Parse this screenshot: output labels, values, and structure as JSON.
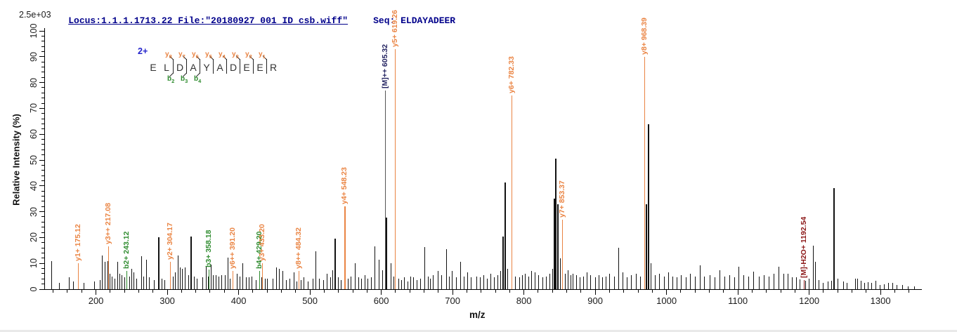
{
  "header": {
    "locus_text": "Locus:1.1.1.1713.22 File:\"20180927_001_ID_csb.wiff\"",
    "seq_text": "Seq: ELDAYADEER"
  },
  "scale_label": "2.5e+03",
  "peptide": {
    "charge_label": "2+",
    "residues": [
      "E",
      "L",
      "D",
      "A",
      "Y",
      "A",
      "D",
      "E",
      "E",
      "R"
    ],
    "boundaries": [
      {},
      {
        "y": "y8",
        "b": "b2"
      },
      {
        "y": "y7",
        "b": "b3"
      },
      {
        "y": "y6",
        "b": "b4"
      },
      {
        "y": "y5"
      },
      {
        "y": "y4"
      },
      {
        "y": "y3"
      },
      {
        "y": "y2"
      },
      {
        "y": "y1"
      }
    ]
  },
  "axes": {
    "x_label": "m/z",
    "y_label": "Relative  Intensity (%)",
    "x_ticks": [
      200,
      300,
      400,
      500,
      600,
      700,
      800,
      900,
      1000,
      1100,
      1200,
      1300
    ],
    "x_minor_step": 20,
    "y_ticks": [
      0,
      10,
      20,
      30,
      40,
      50,
      60,
      70,
      80,
      90,
      100
    ],
    "y_minor_step": 2,
    "x_range": [
      127.5,
      1358
    ],
    "y_range": [
      0,
      100
    ]
  },
  "chart_data": {
    "type": "ms2-stick-spectrum",
    "xlabel": "m/z",
    "ylabel": "Relative  Intensity (%)",
    "x_range": [
      127.5,
      1358
    ],
    "ylim": [
      0,
      100
    ],
    "base_peak_absolute_intensity": "2.5e+03",
    "precursor": {
      "sequence": "ELDAYADEER",
      "charge": "2+",
      "mz_label": "[M]++ 605.32"
    },
    "colors": {
      "y_ion": "#ea8443",
      "b_ion": "#2e8b2e",
      "precursor_line": "#555555",
      "precursor_label": "#1f1f5e",
      "neutral_loss": "#8b1616",
      "default_peak": "#111111"
    },
    "annotated_peaks": [
      {
        "ion": "y1+",
        "mz": 175.12,
        "intensity_pct": 10,
        "label": "y1+ 175.12",
        "series": "y_ion"
      },
      {
        "ion": "y3++",
        "mz": 217.08,
        "intensity_pct": 16.5,
        "label": "y3++ 217.08",
        "series": "y_ion"
      },
      {
        "ion": "b2+",
        "mz": 243.12,
        "intensity_pct": 7,
        "label": "b2+ 243.12",
        "series": "b_ion"
      },
      {
        "ion": "y2+",
        "mz": 304.17,
        "intensity_pct": 10.5,
        "label": "y2+ 304.17",
        "series": "y_ion"
      },
      {
        "ion": "b3+",
        "mz": 358.18,
        "intensity_pct": 7.5,
        "label": "b3+ 358.18",
        "series": "b_ion"
      },
      {
        "ion": "y6++",
        "mz": 391.2,
        "intensity_pct": 7,
        "label": "y6++ 391.20",
        "series": "y_ion"
      },
      {
        "ion": "b4+",
        "mz": 429.2,
        "intensity_pct": 7,
        "label": "b4+ 429.20",
        "series": "b_ion"
      },
      {
        "ion": "y3+",
        "mz": 433.2,
        "intensity_pct": 10,
        "label": "y3+ 433.20",
        "series": "y_ion"
      },
      {
        "ion": "y8++",
        "mz": 484.32,
        "intensity_pct": 7,
        "label": "y8++ 484.32",
        "series": "y_ion"
      },
      {
        "ion": "y4+",
        "mz": 548.23,
        "intensity_pct": 32,
        "label": "y4+ 548.23",
        "series": "y_ion"
      },
      {
        "ion": "[M]++",
        "mz": 605.32,
        "intensity_pct": 77,
        "label": "[M]++ 605.32",
        "series": "precursor"
      },
      {
        "ion": "y5+",
        "mz": 619.26,
        "intensity_pct": 93,
        "label": "y5+ 619.26",
        "series": "y_ion"
      },
      {
        "ion": "y6+",
        "mz": 782.33,
        "intensity_pct": 75,
        "label": "y6+ 782.33",
        "series": "y_ion"
      },
      {
        "ion": "y7+",
        "mz": 853.37,
        "intensity_pct": 27,
        "label": "y7+ 853.37",
        "series": "y_ion"
      },
      {
        "ion": "y8+",
        "mz": 968.39,
        "intensity_pct": 90,
        "label": "y8+ 968.39",
        "series": "y_ion"
      },
      {
        "ion": "[M]-H2O+",
        "mz": 1192.54,
        "intensity_pct": 3.5,
        "label": "[M]-H2O+ 1192.54",
        "series": "neutral_loss"
      }
    ],
    "peaks": [
      [
        137,
        11
      ],
      [
        148,
        2.5
      ],
      [
        162,
        4.5
      ],
      [
        168,
        3
      ],
      [
        183,
        2.5
      ],
      [
        197,
        3
      ],
      [
        205,
        3.5
      ],
      [
        208,
        13
      ],
      [
        212,
        10.5
      ],
      [
        216,
        11
      ],
      [
        219,
        6
      ],
      [
        222,
        5
      ],
      [
        226,
        4
      ],
      [
        230,
        10.5
      ],
      [
        233,
        6
      ],
      [
        236,
        5.5
      ],
      [
        240,
        4.5
      ],
      [
        247,
        5
      ],
      [
        250,
        8
      ],
      [
        253,
        6.5
      ],
      [
        257,
        4
      ],
      [
        263,
        12.8
      ],
      [
        266,
        5
      ],
      [
        270,
        11.4
      ],
      [
        274,
        4.5
      ],
      [
        281,
        3.5
      ],
      [
        288,
        20.2
      ],
      [
        292,
        4
      ],
      [
        296,
        3.5
      ],
      [
        308,
        5
      ],
      [
        311,
        6.5
      ],
      [
        315,
        13
      ],
      [
        318,
        8.5
      ],
      [
        321,
        8
      ],
      [
        325,
        8.5
      ],
      [
        329,
        5.5
      ],
      [
        333,
        20.4
      ],
      [
        337,
        5
      ],
      [
        341,
        4
      ],
      [
        349,
        4.5
      ],
      [
        354,
        8.7
      ],
      [
        357,
        5
      ],
      [
        361,
        9.5
      ],
      [
        364,
        5.5
      ],
      [
        368,
        5.5
      ],
      [
        372,
        5
      ],
      [
        376,
        5.5
      ],
      [
        381,
        5.5
      ],
      [
        385,
        12.2
      ],
      [
        388,
        4
      ],
      [
        397,
        6
      ],
      [
        401,
        5
      ],
      [
        405,
        10
      ],
      [
        410,
        4.5
      ],
      [
        414,
        4.5
      ],
      [
        418,
        5
      ],
      [
        424,
        3.5
      ],
      [
        432,
        4.6
      ],
      [
        437,
        4
      ],
      [
        440,
        4
      ],
      [
        448,
        4
      ],
      [
        453,
        8.5
      ],
      [
        457,
        8
      ],
      [
        461,
        7
      ],
      [
        466,
        3.5
      ],
      [
        471,
        4
      ],
      [
        477,
        6.5
      ],
      [
        481,
        3
      ],
      [
        487,
        3.5
      ],
      [
        491,
        4.6
      ],
      [
        497,
        3
      ],
      [
        504,
        4
      ],
      [
        508,
        14.7
      ],
      [
        513,
        4
      ],
      [
        519,
        3.5
      ],
      [
        524,
        6
      ],
      [
        528,
        4.5
      ],
      [
        531,
        7.3
      ],
      [
        535,
        19.6
      ],
      [
        539,
        4.6
      ],
      [
        543,
        3.5
      ],
      [
        553,
        4
      ],
      [
        557,
        5
      ],
      [
        563,
        10
      ],
      [
        568,
        4.5
      ],
      [
        572,
        4
      ],
      [
        577,
        5.5
      ],
      [
        581,
        4
      ],
      [
        586,
        4.5
      ],
      [
        591,
        16.5
      ],
      [
        596,
        11.4
      ],
      [
        601,
        7.3
      ],
      [
        607,
        27.7
      ],
      [
        613,
        10
      ],
      [
        617,
        5
      ],
      [
        624,
        4
      ],
      [
        628,
        3.5
      ],
      [
        632,
        4.5
      ],
      [
        637,
        3
      ],
      [
        641,
        5
      ],
      [
        645,
        4.5
      ],
      [
        650,
        3.5
      ],
      [
        655,
        4
      ],
      [
        660,
        16.3
      ],
      [
        665,
        5
      ],
      [
        668,
        4
      ],
      [
        672,
        5.5
      ],
      [
        679,
        7
      ],
      [
        684,
        5.4
      ],
      [
        691,
        15.5
      ],
      [
        695,
        5
      ],
      [
        699,
        7
      ],
      [
        705,
        4.5
      ],
      [
        711,
        10.5
      ],
      [
        716,
        5
      ],
      [
        721,
        6.5
      ],
      [
        726,
        4.5
      ],
      [
        733,
        5
      ],
      [
        738,
        4.5
      ],
      [
        743,
        5.5
      ],
      [
        748,
        4
      ],
      [
        753,
        6
      ],
      [
        758,
        4.5
      ],
      [
        763,
        5.5
      ],
      [
        767,
        7
      ],
      [
        771,
        20.5
      ],
      [
        774,
        41.3
      ],
      [
        777,
        8
      ],
      [
        788,
        5
      ],
      [
        793,
        4.6
      ],
      [
        797,
        5.5
      ],
      [
        801,
        6
      ],
      [
        806,
        5
      ],
      [
        810,
        7
      ],
      [
        815,
        6.5
      ],
      [
        820,
        5.4
      ],
      [
        826,
        4.5
      ],
      [
        831,
        5
      ],
      [
        836,
        6
      ],
      [
        840,
        8
      ],
      [
        843,
        35
      ],
      [
        845,
        50.5
      ],
      [
        848,
        33
      ],
      [
        851,
        12
      ],
      [
        858,
        6
      ],
      [
        861,
        7.3
      ],
      [
        865,
        5.5
      ],
      [
        868,
        6
      ],
      [
        873,
        5.4
      ],
      [
        878,
        4.5
      ],
      [
        883,
        5
      ],
      [
        888,
        6.5
      ],
      [
        893,
        5.5
      ],
      [
        900,
        4.5
      ],
      [
        905,
        5.5
      ],
      [
        910,
        4.5
      ],
      [
        915,
        5
      ],
      [
        920,
        6
      ],
      [
        926,
        5
      ],
      [
        932,
        16
      ],
      [
        938,
        6.5
      ],
      [
        944,
        4.5
      ],
      [
        950,
        5.5
      ],
      [
        957,
        6
      ],
      [
        963,
        5
      ],
      [
        972,
        33
      ],
      [
        975,
        63.9
      ],
      [
        978,
        10
      ],
      [
        984,
        5.5
      ],
      [
        990,
        6
      ],
      [
        996,
        5
      ],
      [
        1002,
        6.5
      ],
      [
        1008,
        5
      ],
      [
        1014,
        4.5
      ],
      [
        1020,
        5.5
      ],
      [
        1027,
        4.5
      ],
      [
        1033,
        6
      ],
      [
        1040,
        5
      ],
      [
        1047,
        9.2
      ],
      [
        1053,
        5
      ],
      [
        1060,
        5.5
      ],
      [
        1067,
        4.5
      ],
      [
        1074,
        7.3
      ],
      [
        1081,
        5
      ],
      [
        1088,
        5.5
      ],
      [
        1095,
        4.5
      ],
      [
        1101,
        8.7
      ],
      [
        1108,
        5.5
      ],
      [
        1115,
        5
      ],
      [
        1122,
        6.8
      ],
      [
        1129,
        5
      ],
      [
        1136,
        5.5
      ],
      [
        1143,
        5
      ],
      [
        1150,
        6
      ],
      [
        1157,
        8.7
      ],
      [
        1164,
        6
      ],
      [
        1170,
        6
      ],
      [
        1176,
        4.5
      ],
      [
        1182,
        4.6
      ],
      [
        1187,
        3.8
      ],
      [
        1194,
        3.3
      ],
      [
        1199,
        4
      ],
      [
        1205,
        16.8
      ],
      [
        1208,
        10.6
      ],
      [
        1213,
        3.5
      ],
      [
        1219,
        2.5
      ],
      [
        1226,
        3
      ],
      [
        1231,
        3.3
      ],
      [
        1235,
        39.1
      ],
      [
        1240,
        4
      ],
      [
        1248,
        3
      ],
      [
        1253,
        2.5
      ],
      [
        1264,
        4
      ],
      [
        1267,
        4.2
      ],
      [
        1272,
        3.3
      ],
      [
        1277,
        2.5
      ],
      [
        1282,
        2.7
      ],
      [
        1287,
        2.5
      ],
      [
        1293,
        3.3
      ],
      [
        1299,
        1.5
      ],
      [
        1305,
        2
      ],
      [
        1311,
        2.5
      ],
      [
        1317,
        2.5
      ],
      [
        1323,
        1.5
      ],
      [
        1330,
        1.5
      ],
      [
        1338,
        1.2
      ],
      [
        1347,
        1
      ]
    ]
  }
}
